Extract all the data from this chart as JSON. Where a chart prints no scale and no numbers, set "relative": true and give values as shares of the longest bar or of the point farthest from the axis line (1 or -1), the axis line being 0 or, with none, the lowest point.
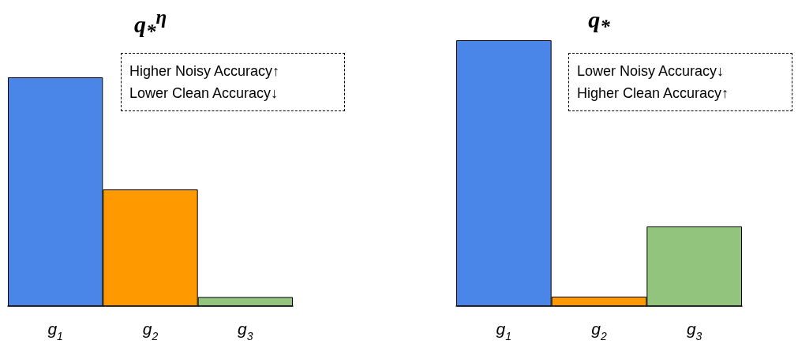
{
  "chart_data": [
    {
      "type": "bar",
      "title": "q$_{*}$$^{η}$",
      "categories": [
        "g$_{1}$",
        "g$_{2}$",
        "g$_{3}$"
      ],
      "relative": true,
      "values": [
        1,
        0.51,
        0.04
      ],
      "colors": [
        "#4a86e8",
        "#ff9900",
        "#93c47d"
      ],
      "annotations": [
        "Higher Noisy Accuracy↑",
        "Lower Clean Accuracy↓"
      ]
    },
    {
      "type": "bar",
      "title": "q$_{*}$",
      "categories": [
        "g$_{1}$",
        "g$_{2}$",
        "g$_{3}$"
      ],
      "relative": true,
      "values": [
        1,
        0.036,
        0.3
      ],
      "colors": [
        "#4a86e8",
        "#ff9900",
        "#93c47d"
      ],
      "annotations": [
        "Lower Noisy Accuracy↓",
        "Higher Clean Accuracy↑"
      ]
    }
  ]
}
